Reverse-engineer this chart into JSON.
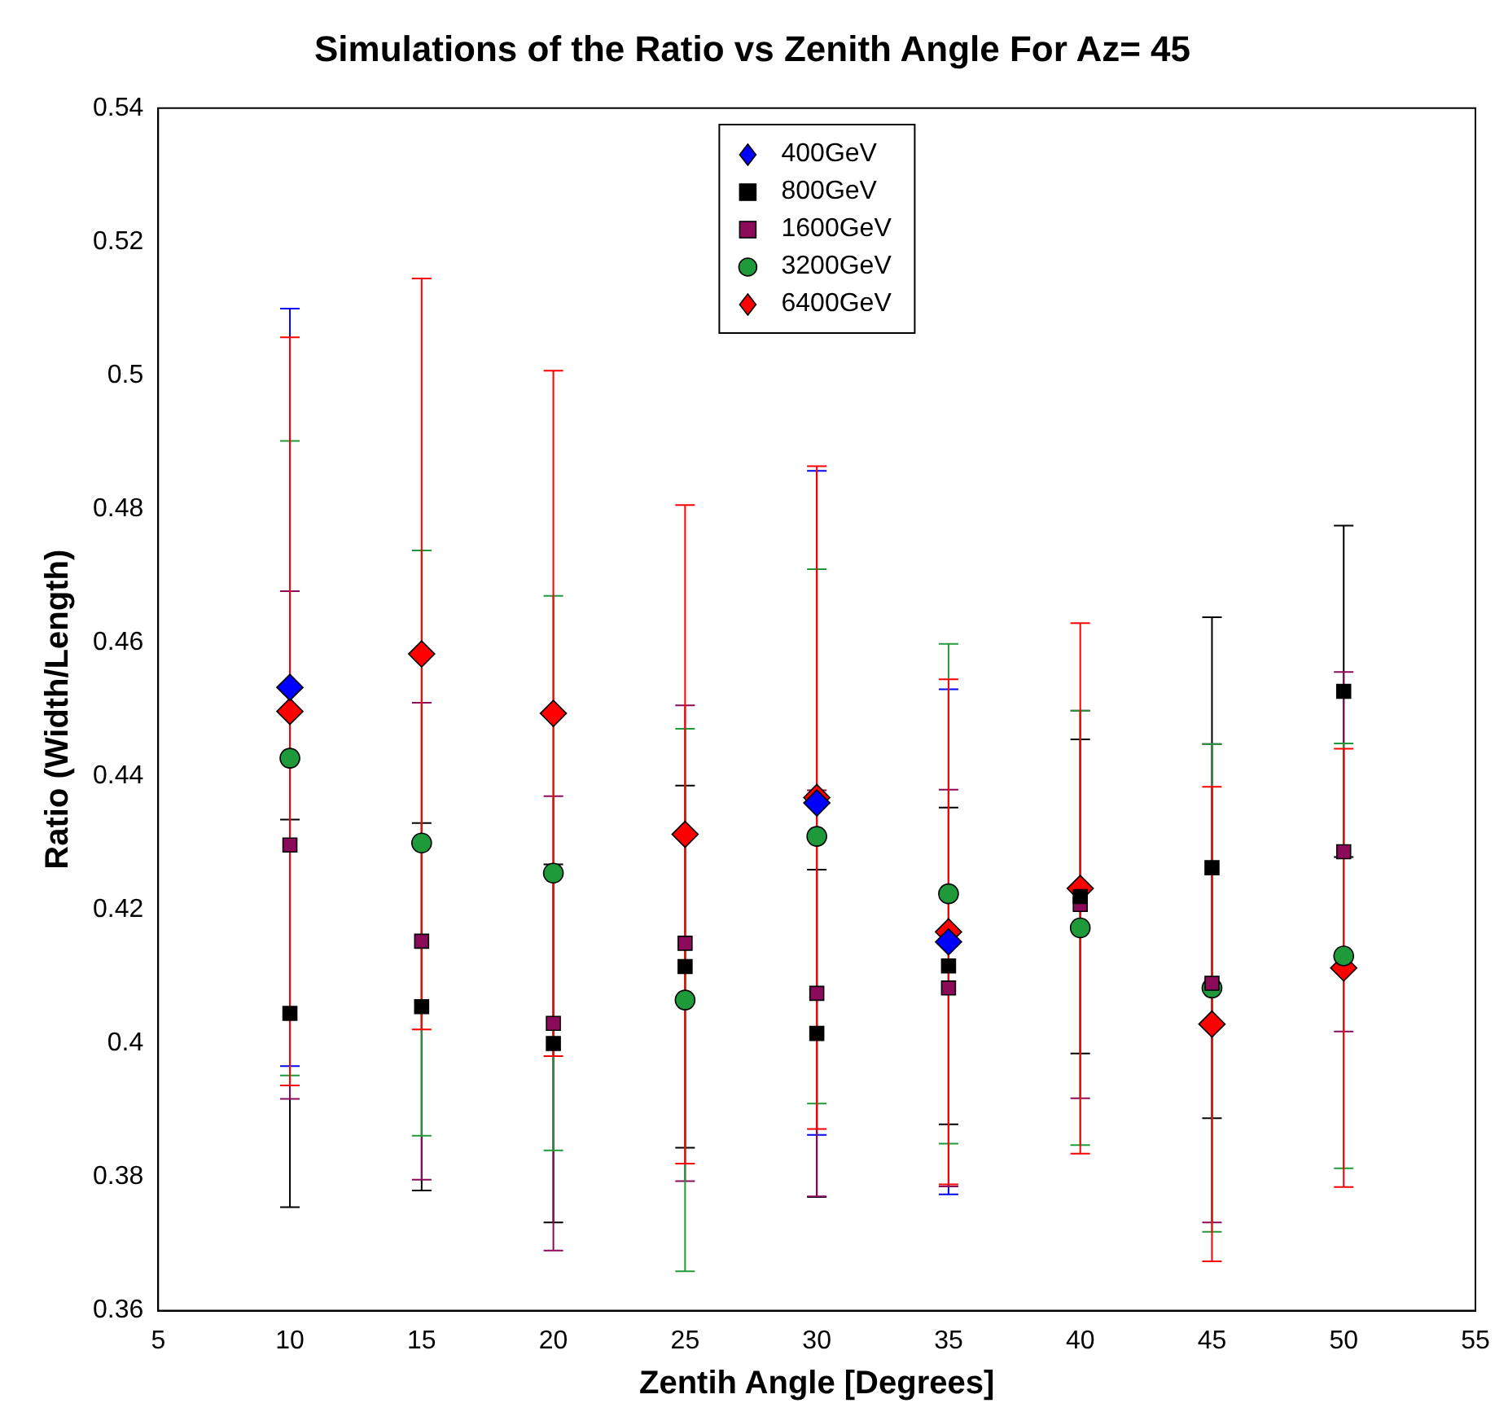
{
  "chart_data": {
    "type": "scatter",
    "title": "Simulations of the Ratio vs Zenith Angle For Az= 45",
    "xlabel": "Zentih Angle [Degrees]",
    "ylabel": "Ratio (Width/Length)",
    "x": [
      10,
      15,
      20,
      25,
      30,
      35,
      40,
      45,
      50
    ],
    "xlim": [
      5,
      55
    ],
    "xticks": [
      5,
      10,
      15,
      20,
      25,
      30,
      35,
      40,
      45,
      50,
      55
    ],
    "ylim": [
      0.36,
      0.54
    ],
    "yticks": [
      0.36,
      0.38,
      0.4,
      0.42,
      0.44,
      0.46,
      0.48,
      0.5,
      0.52,
      0.54
    ],
    "grid": false,
    "legend": "top",
    "series": [
      {
        "name": "400GeV",
        "color": "#0000ff",
        "marker": "diamond",
        "values": [
          0.4533,
          null,
          null,
          null,
          0.436,
          0.4152,
          null,
          null,
          null
        ],
        "errors": [
          0.0567,
          null,
          null,
          null,
          0.0497,
          0.0378,
          null,
          null,
          null
        ]
      },
      {
        "name": "800GeV",
        "color": "#000000",
        "marker": "square",
        "values": [
          0.4045,
          0.4055,
          0.4,
          0.4115,
          0.4015,
          0.4116,
          0.422,
          0.4263,
          0.4527
        ],
        "errors": [
          0.029,
          0.0275,
          0.0268,
          0.0271,
          0.0245,
          0.0237,
          0.0235,
          0.0375,
          0.0248
        ]
      },
      {
        "name": "1600GeV",
        "color": "#8b0a5a",
        "marker": "square",
        "values": [
          0.4297,
          0.4153,
          0.403,
          0.415,
          0.4075,
          0.4083,
          0.4208,
          0.409,
          0.4287
        ],
        "errors": [
          0.038,
          0.0357,
          0.034,
          0.0356,
          0.0304,
          0.0297,
          0.029,
          0.0358,
          0.0269
        ]
      },
      {
        "name": "3200GeV",
        "color": "#1f9a3a",
        "marker": "circle",
        "values": [
          0.4427,
          0.43,
          0.4255,
          0.4065,
          0.431,
          0.4224,
          0.4173,
          0.4083,
          0.4131
        ],
        "errors": [
          0.0475,
          0.0438,
          0.0415,
          0.0406,
          0.04,
          0.0374,
          0.0325,
          0.0365,
          0.0318
        ]
      },
      {
        "name": "6400GeV",
        "color": "#ff0000",
        "marker": "diamond",
        "values": [
          0.4497,
          0.4583,
          0.4494,
          0.4313,
          0.4368,
          0.4167,
          0.4232,
          0.4029,
          0.4113
        ],
        "errors": [
          0.056,
          0.0562,
          0.0513,
          0.0493,
          0.0496,
          0.0378,
          0.0397,
          0.0355,
          0.0328
        ]
      }
    ]
  }
}
